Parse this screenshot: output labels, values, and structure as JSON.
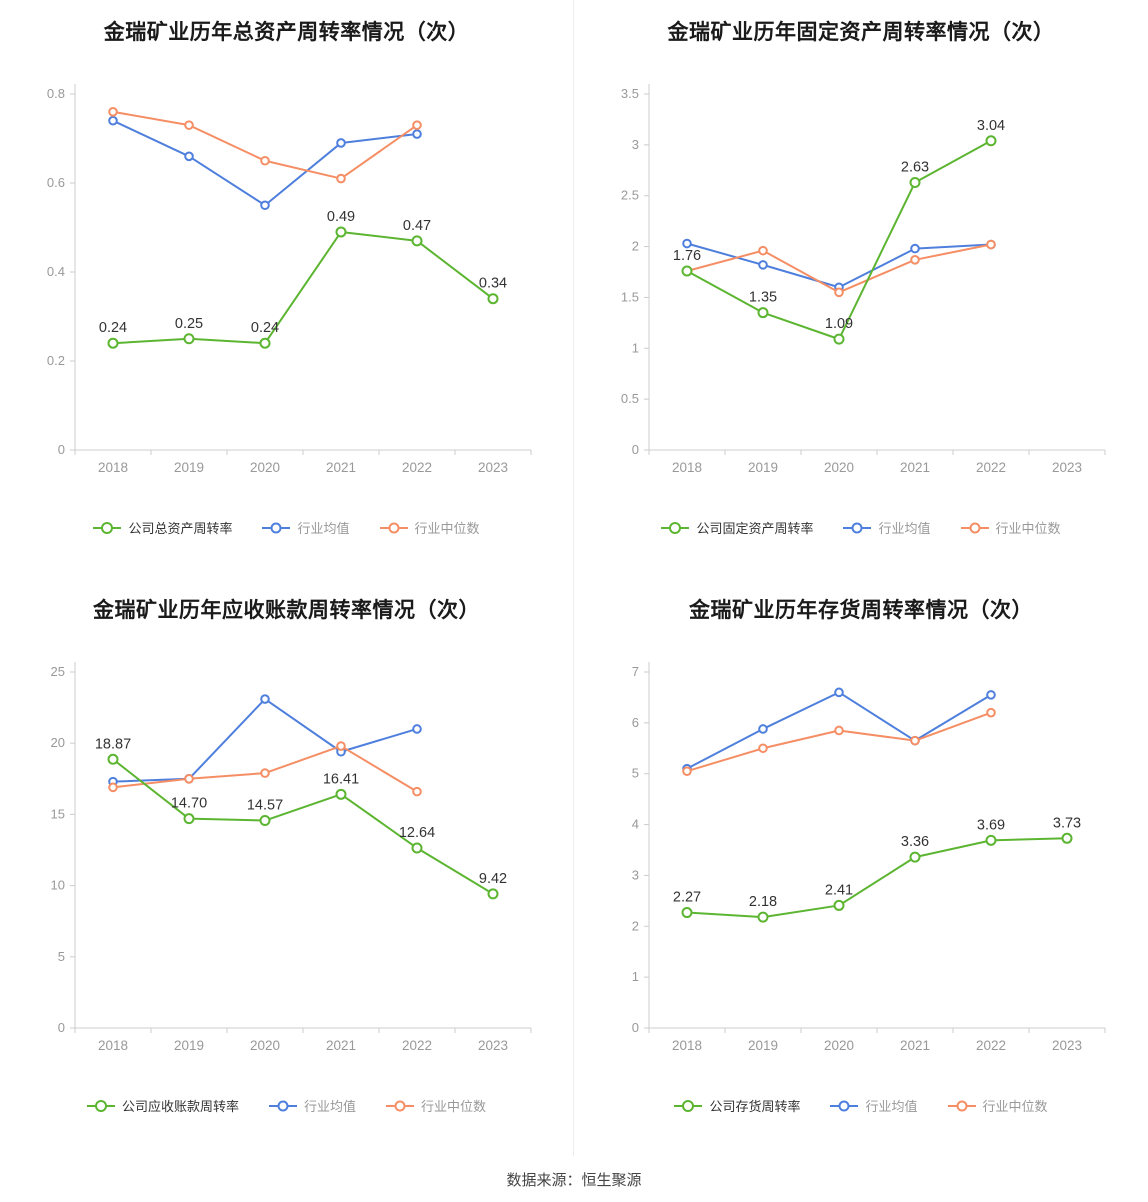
{
  "colors": {
    "company": "#5cb531",
    "industry_avg": "#4e7fdd",
    "industry_median": "#f58e64",
    "axis": "#cccccc",
    "tick_text": "#999999",
    "label_text": "#333333",
    "title": "#1a1a1a"
  },
  "footer": {
    "text": "数据来源：恒生聚源"
  },
  "chart_data": [
    {
      "type": "line",
      "title": "金瑞矿业历年总资产周转率情况（次）",
      "categories": [
        "2018",
        "2019",
        "2020",
        "2021",
        "2022",
        "2023"
      ],
      "ylim": [
        0,
        0.8
      ],
      "yticks": [
        "0",
        "0.2",
        "0.4",
        "0.6",
        "0.8"
      ],
      "legend_position": "bottom",
      "grid": false,
      "series": [
        {
          "name": "公司总资产周转率",
          "role": "company",
          "values": [
            0.24,
            0.25,
            0.24,
            0.49,
            0.47,
            0.34
          ],
          "labels": [
            "0.24",
            "0.25",
            "0.24",
            "0.49",
            "0.47",
            "0.34"
          ]
        },
        {
          "name": "行业均值",
          "role": "industry_avg",
          "values": [
            0.74,
            0.66,
            0.55,
            0.69,
            0.71
          ]
        },
        {
          "name": "行业中位数",
          "role": "industry_median",
          "values": [
            0.76,
            0.73,
            0.65,
            0.61,
            0.73
          ]
        }
      ]
    },
    {
      "type": "line",
      "title": "金瑞矿业历年固定资产周转率情况（次）",
      "categories": [
        "2018",
        "2019",
        "2020",
        "2021",
        "2022",
        "2023"
      ],
      "ylim": [
        0,
        3.5
      ],
      "yticks": [
        "0",
        "0.5",
        "1",
        "1.5",
        "2",
        "2.5",
        "3",
        "3.5"
      ],
      "legend_position": "bottom",
      "grid": false,
      "series": [
        {
          "name": "公司固定资产周转率",
          "role": "company",
          "values": [
            1.76,
            1.35,
            1.09,
            2.63,
            3.04
          ],
          "labels": [
            "1.76",
            "1.35",
            "1.09",
            "2.63",
            "3.04"
          ]
        },
        {
          "name": "行业均值",
          "role": "industry_avg",
          "values": [
            2.03,
            1.82,
            1.6,
            1.98,
            2.02
          ]
        },
        {
          "name": "行业中位数",
          "role": "industry_median",
          "values": [
            1.76,
            1.96,
            1.55,
            1.87,
            2.02
          ]
        }
      ]
    },
    {
      "type": "line",
      "title": "金瑞矿业历年应收账款周转率情况（次）",
      "categories": [
        "2018",
        "2019",
        "2020",
        "2021",
        "2022",
        "2023"
      ],
      "ylim": [
        0,
        25
      ],
      "yticks": [
        "0",
        "5",
        "10",
        "15",
        "20",
        "25"
      ],
      "legend_position": "bottom",
      "grid": false,
      "series": [
        {
          "name": "公司应收账款周转率",
          "role": "company",
          "values": [
            18.87,
            14.7,
            14.57,
            16.41,
            12.64,
            9.42
          ],
          "labels": [
            "18.87",
            "14.70",
            "14.57",
            "16.41",
            "12.64",
            "9.42"
          ]
        },
        {
          "name": "行业均值",
          "role": "industry_avg",
          "values": [
            17.3,
            17.5,
            23.1,
            19.4,
            21.0
          ]
        },
        {
          "name": "行业中位数",
          "role": "industry_median",
          "values": [
            16.9,
            17.5,
            17.9,
            19.8,
            16.6
          ]
        }
      ]
    },
    {
      "type": "line",
      "title": "金瑞矿业历年存货周转率情况（次）",
      "categories": [
        "2018",
        "2019",
        "2020",
        "2021",
        "2022",
        "2023"
      ],
      "ylim": [
        0,
        7
      ],
      "yticks": [
        "0",
        "1",
        "2",
        "3",
        "4",
        "5",
        "6",
        "7"
      ],
      "legend_position": "bottom",
      "grid": false,
      "series": [
        {
          "name": "公司存货周转率",
          "role": "company",
          "values": [
            2.27,
            2.18,
            2.41,
            3.36,
            3.69,
            3.73
          ],
          "labels": [
            "2.27",
            "2.18",
            "2.41",
            "3.36",
            "3.69",
            "3.73"
          ]
        },
        {
          "name": "行业均值",
          "role": "industry_avg",
          "values": [
            5.1,
            5.88,
            6.6,
            5.65,
            6.55
          ]
        },
        {
          "name": "行业中位数",
          "role": "industry_median",
          "values": [
            5.05,
            5.5,
            5.85,
            5.65,
            6.2
          ]
        }
      ]
    }
  ]
}
